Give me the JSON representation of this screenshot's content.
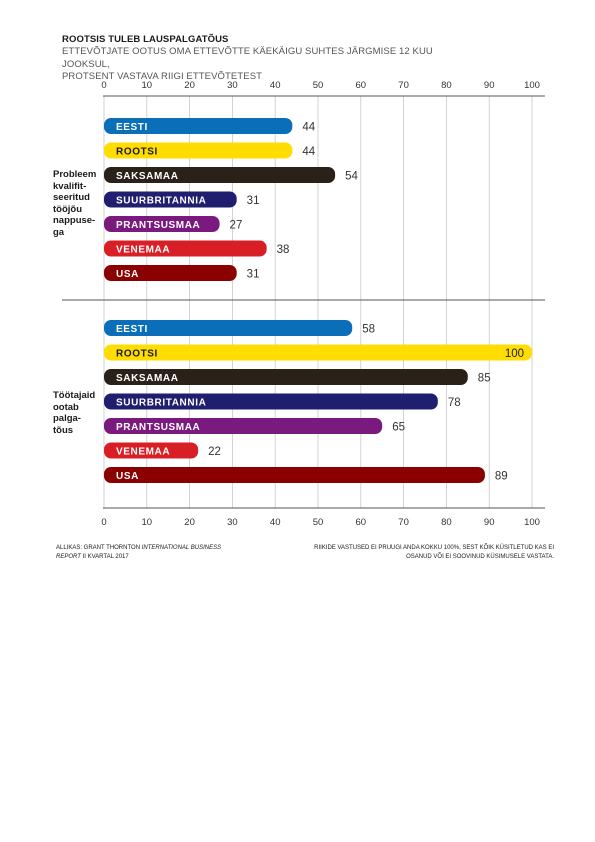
{
  "chart_data": {
    "type": "bar",
    "orientation": "horizontal",
    "title": "ROOTSIS TULEB LAUSPALGATÕUS",
    "subtitle_lines": [
      "ETTEVÕTJATE OOTUS OMA ETTEVÕTTE KÄEKÄIGU SUHTES JÄRGMISE 12 KUU JOOKSUL,",
      "PROTSENT VASTAVA RIIGI ETTEVÕTETEST"
    ],
    "xlim": [
      0,
      100
    ],
    "xticks": [
      "0",
      "10",
      "20",
      "30",
      "40",
      "50",
      "60",
      "70",
      "80",
      "90",
      "100"
    ],
    "grid": true,
    "groups": [
      {
        "label_lines": [
          "Probleem",
          "kvalifit-",
          "seeritud",
          "tööjõu",
          "nappuse-",
          "ga"
        ],
        "bars": [
          {
            "country": "EESTI",
            "value": 44
          },
          {
            "country": "ROOTSI",
            "value": 44
          },
          {
            "country": "SAKSAMAA",
            "value": 54
          },
          {
            "country": "SUURBRITANNIA",
            "value": 31
          },
          {
            "country": "PRANTSUSMAA",
            "value": 27
          },
          {
            "country": "VENEMAA",
            "value": 38
          },
          {
            "country": "USA",
            "value": 31
          }
        ]
      },
      {
        "label_lines": [
          "Töötajaid",
          "ootab",
          "palga-",
          "tõus"
        ],
        "bars": [
          {
            "country": "EESTI",
            "value": 58
          },
          {
            "country": "ROOTSI",
            "value": 100
          },
          {
            "country": "SAKSAMAA",
            "value": 85
          },
          {
            "country": "SUURBRITANNIA",
            "value": 78
          },
          {
            "country": "PRANTSUSMAA",
            "value": 65
          },
          {
            "country": "VENEMAA",
            "value": 22
          },
          {
            "country": "USA",
            "value": 89
          }
        ]
      }
    ],
    "colors": {
      "EESTI": "#0a6fb8",
      "ROOTSI": "#ffdd00",
      "SAKSAMAA": "#2a2119",
      "SUURBRITANNIA": "#201e6e",
      "PRANTSUSMAA": "#7a1a7e",
      "VENEMAA": "#d81f26",
      "USA": "#8b0000"
    },
    "label_colors": {
      "EESTI": "#ffffff",
      "ROOTSI": "#1a1a1a",
      "SAKSAMAA": "#ffffff",
      "SUURBRITANNIA": "#ffffff",
      "PRANTSUSMAA": "#ffffff",
      "VENEMAA": "#ffffff",
      "USA": "#ffffff"
    }
  },
  "footer": {
    "source_prefix": "ALLIKAS: GRANT THORNTON ",
    "source_italic": "INTERNATIONAL BUSINESS REPORT",
    "source_suffix": " II KVARTAL 2017",
    "note": "RIIKIDE VASTUSED EI PRUUGI ANDA KOKKU 100%, SEST KÕIK KÜSITLETUD KAS EI OSANUD VÕI EI SOOVINUD KÜSIMUSELE VASTATA."
  }
}
